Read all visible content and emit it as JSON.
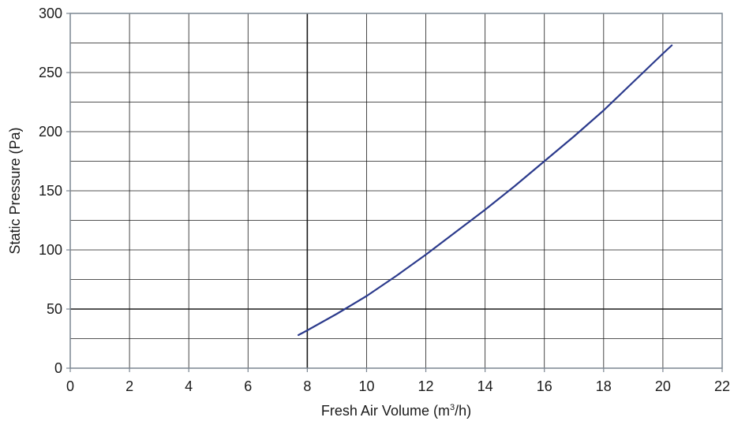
{
  "chart_data": {
    "type": "line",
    "title": "",
    "xlabel": "Fresh Air Volume (m",
    "xlabel_sup": "3",
    "xlabel_tail": "/h)",
    "ylabel": "Static Pressure (Pa)",
    "xlim": [
      0,
      22
    ],
    "ylim": [
      0,
      300
    ],
    "x_ticks": [
      0,
      2,
      4,
      6,
      8,
      10,
      12,
      14,
      16,
      18,
      20,
      22
    ],
    "y_ticks": [
      0,
      50,
      100,
      150,
      200,
      250,
      300
    ],
    "grid": true,
    "minor_grid_y_step": 25,
    "emphasized_gridlines": {
      "x": [
        8
      ],
      "y": [
        50
      ]
    },
    "legend": "none",
    "colors": {
      "series": "#2b3a8c",
      "grid": "#1a1a1a",
      "frame": "#7a8591"
    },
    "series": [
      {
        "x": [
          7.7,
          8.0,
          9.0,
          10.0,
          11.0,
          12.0,
          13.0,
          14.0,
          15.0,
          16.0,
          17.0,
          18.0,
          19.0,
          20.0,
          20.3
        ],
        "y": [
          28,
          32,
          46,
          61,
          78,
          96,
          115,
          134,
          154,
          175,
          196,
          218,
          242,
          266,
          273
        ]
      }
    ]
  }
}
